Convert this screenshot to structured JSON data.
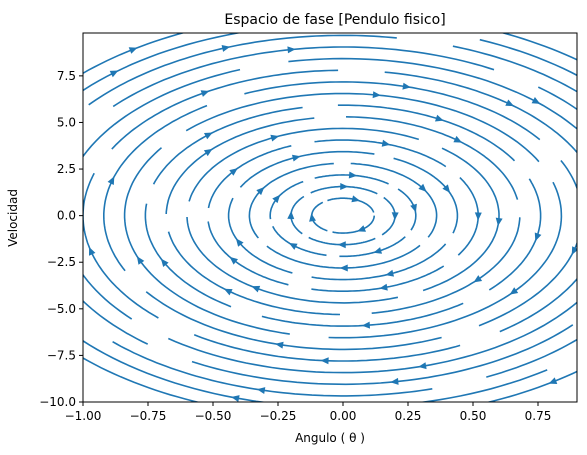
{
  "chart_data": {
    "type": "streamplot",
    "title": "Espacio de fase [Pendulo fisico]",
    "xlabel": "Angulo ( θ )",
    "ylabel": "Velocidad",
    "xlim": [
      -1.0,
      0.9
    ],
    "ylim": [
      -10.0,
      9.8
    ],
    "xticks": [
      -1.0,
      -0.75,
      -0.5,
      -0.25,
      0.0,
      0.25,
      0.5,
      0.75
    ],
    "xtick_labels": [
      "−1.00",
      "−0.75",
      "−0.50",
      "−0.25",
      "0.00",
      "0.25",
      "0.50",
      "0.75"
    ],
    "yticks": [
      -10.0,
      -7.5,
      -5.0,
      -2.5,
      0.0,
      2.5,
      5.0,
      7.5
    ],
    "ytick_labels": [
      "−10.0",
      "−7.5",
      "−5.0",
      "−2.5",
      "0.0",
      "2.5",
      "5.0",
      "7.5"
    ],
    "grid": false,
    "line_color": "#1f77b4",
    "flow_direction": "clockwise",
    "orbit_amplitudes_theta": [
      0.12,
      0.2,
      0.28,
      0.36,
      0.44,
      0.52,
      0.6,
      0.68,
      0.76,
      0.84,
      0.92,
      1.0,
      1.08,
      1.16,
      1.24,
      1.32,
      1.4
    ],
    "velocity_scale": 7.8
  }
}
